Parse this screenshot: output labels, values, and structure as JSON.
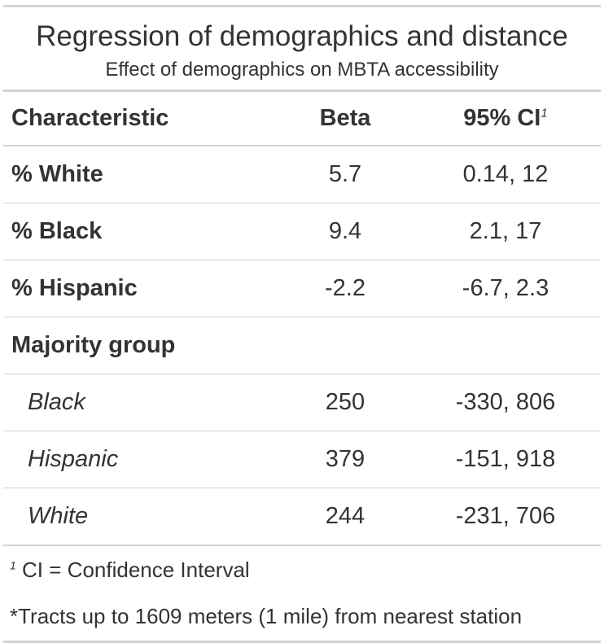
{
  "title": "Regression of demographics and distance",
  "subtitle": "Effect of demographics on MBTA accessibility",
  "columns": {
    "characteristic": "Characteristic",
    "beta": "Beta",
    "ci": "95% CI",
    "ci_footnote_mark": "1"
  },
  "rows": [
    {
      "label": "% White",
      "beta": "5.7",
      "ci": "0.14, 12"
    },
    {
      "label": "% Black",
      "beta": "9.4",
      "ci": "2.1, 17"
    },
    {
      "label": "% Hispanic",
      "beta": "-2.2",
      "ci": "-6.7, 2.3"
    },
    {
      "label": "Majority group",
      "beta": "",
      "ci": ""
    },
    {
      "label": "Black",
      "beta": "250",
      "ci": "-330, 806"
    },
    {
      "label": "Hispanic",
      "beta": "379",
      "ci": "-151, 918"
    },
    {
      "label": "White",
      "beta": "244",
      "ci": "-231, 706"
    }
  ],
  "footnotes": {
    "mark": "1",
    "ci_note": "CI = Confidence Interval",
    "source_note": "*Tracts up to 1609 meters (1 mile) from nearest station"
  }
}
